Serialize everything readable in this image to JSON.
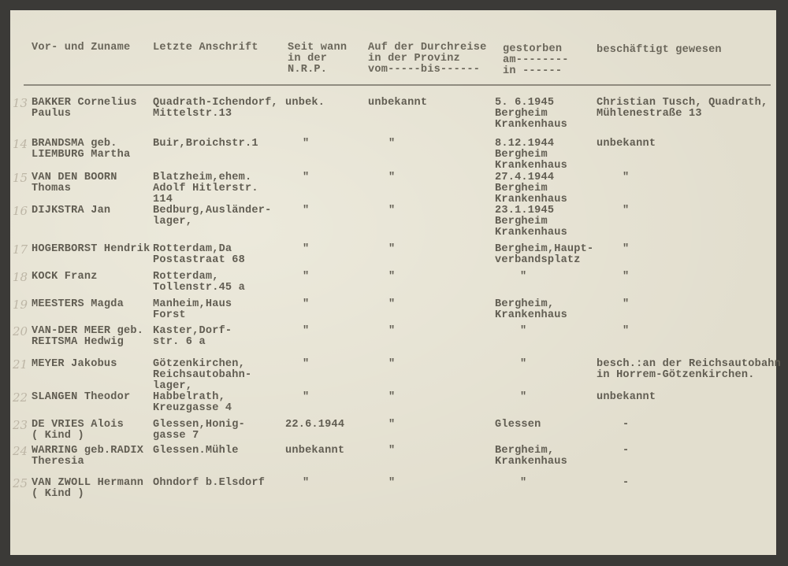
{
  "header": {
    "name": "Vor- und Zuname",
    "address": "Letzte Anschrift",
    "since": "Seit wann\nin der\nN.R.P.",
    "transit": "Auf der Durchreise\nin der Provinz\nvom-----bis------",
    "died": "gestorben\nam--------\nin ------",
    "employed": "beschäftigt gewesen"
  },
  "rows": [
    {
      "no": "13",
      "name": "BAKKER Cornelius\nPaulus",
      "address": "Quadrath-Ichendorf,\nMittelstr.13",
      "since": "unbek.",
      "transit": "unbekannt",
      "died": "5. 6.1945\nBergheim\nKrankenhaus",
      "employed": "Christian Tusch, Quadrath,\nMühlenestraße 13"
    },
    {
      "no": "14",
      "name": "BRANDSMA geb.\nLIEMBURG Martha",
      "address": "Buir,Broichstr.1",
      "since": "\"",
      "transit": "\"",
      "died": "8.12.1944\nBergheim\nKrankenhaus",
      "employed": "unbekannt"
    },
    {
      "no": "15",
      "name": "VAN DEN BOORN\nThomas",
      "address": "Blatzheim,ehem.\nAdolf Hitlerstr.\n114",
      "since": "\"",
      "transit": "\"",
      "died": "27.4.1944\nBergheim\nKrankenhaus",
      "employed": "\""
    },
    {
      "no": "16",
      "name": "DIJKSTRA Jan",
      "address": "Bedburg,Ausländer-\nlager,",
      "since": "\"",
      "transit": "\"",
      "died": "23.1.1945\nBergheim\nKrankenhaus",
      "employed": "\""
    },
    {
      "no": "17",
      "name": "HOGERBORST Hendrik",
      "address": "Rotterdam,Da\nPostastraat 68",
      "since": "\"",
      "transit": "\"",
      "died": "Bergheim,Haupt-\nverbandsplatz",
      "employed": "\""
    },
    {
      "no": "18",
      "name": "KOCK Franz",
      "address": "Rotterdam,\nTollenstr.45 a",
      "since": "\"",
      "transit": "\"",
      "died": "\"",
      "employed": "\""
    },
    {
      "no": "19",
      "name": "MEESTERS Magda",
      "address": "Manheim,Haus\nForst",
      "since": "\"",
      "transit": "\"",
      "died": "Bergheim,\nKrankenhaus",
      "employed": "\""
    },
    {
      "no": "20",
      "name": "VAN-DER MEER geb.\nREITSMA Hedwig",
      "address": "Kaster,Dorf-\nstr. 6 a",
      "since": "\"",
      "transit": "\"",
      "died": "\"",
      "employed": "\""
    },
    {
      "no": "21",
      "name": "MEYER Jakobus",
      "address": "Götzenkirchen,\nReichsautobahn-\nlager,",
      "since": "\"",
      "transit": "\"",
      "died": "\"",
      "employed": "besch.:an der Reichsautobahn\nin Horrem-Götzenkirchen."
    },
    {
      "no": "22",
      "name": "SLANGEN Theodor",
      "address": "Habbelrath,\nKreuzgasse 4",
      "since": "\"",
      "transit": "\"",
      "died": "\"",
      "employed": "unbekannt"
    },
    {
      "no": "23",
      "name": "DE VRIES Alois\n( Kind )",
      "address": "Glessen,Honig-\ngasse 7",
      "since": "22.6.1944",
      "transit": "\"",
      "died": "Glessen",
      "employed": "-"
    },
    {
      "no": "24",
      "name": "WARRING geb.RADIX\nTheresia",
      "address": "Glessen.Mühle",
      "since": "unbekannt",
      "transit": "\"",
      "died": "Bergheim,\nKrankenhaus",
      "employed": "-"
    },
    {
      "no": "25",
      "name": "VAN ZWOLL Hermann\n( Kind )",
      "address": "Ohndorf b.Elsdorf",
      "since": "\"",
      "transit": "\"",
      "died": "\"",
      "employed": "-"
    }
  ]
}
